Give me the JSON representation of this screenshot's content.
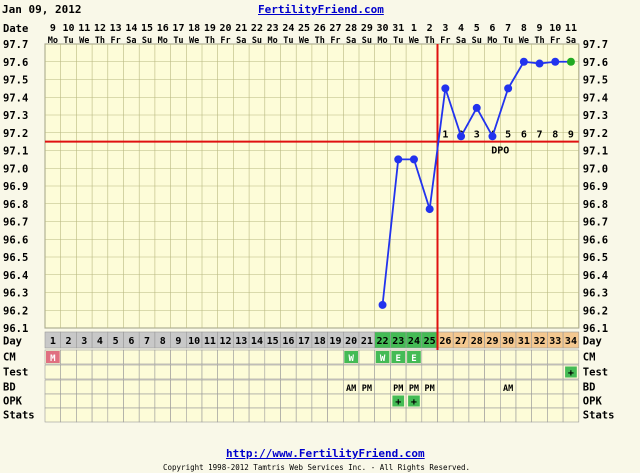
{
  "header": {
    "date": "Jan 09, 2012",
    "site": "FertilityFriend.com"
  },
  "footer": {
    "url": "http://www.FertilityFriend.com",
    "copyright": "Copyright 1998-2012 Tamtris Web Services Inc. - All Rights Reserved."
  },
  "row_labels": {
    "date": "Date",
    "day": "Day",
    "cm": "CM",
    "test": "Test",
    "bd": "BD",
    "opk": "OPK",
    "stats": "Stats"
  },
  "colors": {
    "line": "#2233ee",
    "point": "#2233ee",
    "point_last": "#22aa22",
    "coverline": "#e01010",
    "ovulation_line": "#e01010",
    "grid": "#b8b880",
    "day_gray": "#c8c8c8",
    "day_green": "#44bb55",
    "day_orange": "#f4c890",
    "cm_menses": "#e07080",
    "cm_fertile": "#44bb55"
  },
  "chart_data": {
    "type": "line",
    "date_numbers": [
      "9",
      "10",
      "11",
      "12",
      "13",
      "14",
      "15",
      "16",
      "17",
      "18",
      "19",
      "20",
      "21",
      "22",
      "23",
      "24",
      "25",
      "26",
      "27",
      "28",
      "29",
      "30",
      "31",
      "1",
      "2",
      "3",
      "4",
      "5",
      "6",
      "7",
      "8",
      "9",
      "10",
      "11"
    ],
    "weekdays": [
      "Mo",
      "Tu",
      "We",
      "Th",
      "Fr",
      "Sa",
      "Su",
      "Mo",
      "Tu",
      "We",
      "Th",
      "Fr",
      "Sa",
      "Su",
      "Mo",
      "Tu",
      "We",
      "Th",
      "Fr",
      "Sa",
      "Su",
      "Mo",
      "Tu",
      "We",
      "Th",
      "Fr",
      "Sa",
      "Su",
      "Mo",
      "Tu",
      "We",
      "Th",
      "Fr",
      "Sa"
    ],
    "cycle_days": [
      "1",
      "2",
      "3",
      "4",
      "5",
      "6",
      "7",
      "8",
      "9",
      "10",
      "11",
      "12",
      "13",
      "14",
      "15",
      "16",
      "17",
      "18",
      "19",
      "20",
      "21",
      "22",
      "23",
      "24",
      "25",
      "26",
      "27",
      "28",
      "29",
      "30",
      "31",
      "32",
      "33",
      "34"
    ],
    "y_ticks": [
      "97.7",
      "97.6",
      "97.5",
      "97.4",
      "97.3",
      "97.2",
      "97.1",
      "97.0",
      "96.9",
      "96.8",
      "96.7",
      "96.6",
      "96.5",
      "96.4",
      "96.3",
      "96.2",
      "96.1"
    ],
    "ylim": [
      96.1,
      97.7
    ],
    "temps": [
      {
        "day": 22,
        "temp": 96.23
      },
      {
        "day": 23,
        "temp": 97.05
      },
      {
        "day": 24,
        "temp": 97.05
      },
      {
        "day": 25,
        "temp": 96.77
      },
      {
        "day": 26,
        "temp": 97.45
      },
      {
        "day": 27,
        "temp": 97.18
      },
      {
        "day": 28,
        "temp": 97.34
      },
      {
        "day": 29,
        "temp": 97.18
      },
      {
        "day": 30,
        "temp": 97.45
      },
      {
        "day": 31,
        "temp": 97.6
      },
      {
        "day": 32,
        "temp": 97.59
      },
      {
        "day": 33,
        "temp": 97.6
      },
      {
        "day": 34,
        "temp": 97.6
      }
    ],
    "coverline": 97.15,
    "ovulation_day": 25,
    "dpo_labels": [
      {
        "day": 26,
        "label": "1"
      },
      {
        "day": 27,
        "label": "2"
      },
      {
        "day": 28,
        "label": "3"
      },
      {
        "day": 29,
        "label": "4"
      },
      {
        "day": 30,
        "label": "5"
      },
      {
        "day": 31,
        "label": "6"
      },
      {
        "day": 32,
        "label": "7"
      },
      {
        "day": 33,
        "label": "8"
      },
      {
        "day": 34,
        "label": "9"
      }
    ],
    "dpo_text": "DPO",
    "dpo_text_day": 29.5,
    "day_colors": {
      "gray": [
        1,
        21
      ],
      "green": [
        22,
        25
      ],
      "orange": [
        26,
        34
      ]
    },
    "cm": [
      {
        "day": 1,
        "value": "M",
        "kind": "menses"
      },
      {
        "day": 20,
        "value": "W",
        "kind": "fertile"
      },
      {
        "day": 22,
        "value": "W",
        "kind": "fertile"
      },
      {
        "day": 23,
        "value": "E",
        "kind": "fertile"
      },
      {
        "day": 24,
        "value": "E",
        "kind": "fertile"
      }
    ],
    "test": [
      {
        "day": 34,
        "value": "+"
      }
    ],
    "bd": [
      {
        "day": 20,
        "value": "AM"
      },
      {
        "day": 21,
        "value": "PM"
      },
      {
        "day": 23,
        "value": "PM"
      },
      {
        "day": 24,
        "value": "PM"
      },
      {
        "day": 25,
        "value": "PM"
      },
      {
        "day": 30,
        "value": "AM"
      }
    ],
    "opk": [
      {
        "day": 23,
        "value": "+"
      },
      {
        "day": 24,
        "value": "+"
      }
    ]
  }
}
